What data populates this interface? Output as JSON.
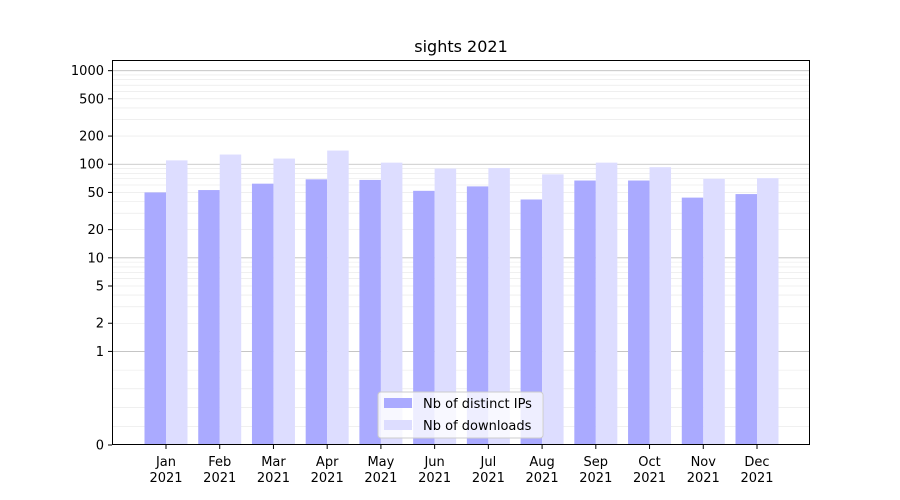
{
  "chart_data": {
    "type": "bar",
    "title": "sights 2021",
    "xlabel": "",
    "ylabel": "",
    "yscale": "symlog",
    "ylim": [
      0,
      1300
    ],
    "y_ticks": [
      0,
      1,
      2,
      5,
      10,
      20,
      50,
      100,
      200,
      500,
      1000
    ],
    "y_tick_labels": [
      "0",
      "1",
      "2",
      "5",
      "10",
      "20",
      "50",
      "100",
      "200",
      "500",
      "1000"
    ],
    "grid": true,
    "legend_position": "bottom-center",
    "categories": [
      {
        "month": "Jan",
        "year": "2021"
      },
      {
        "month": "Feb",
        "year": "2021"
      },
      {
        "month": "Mar",
        "year": "2021"
      },
      {
        "month": "Apr",
        "year": "2021"
      },
      {
        "month": "May",
        "year": "2021"
      },
      {
        "month": "Jun",
        "year": "2021"
      },
      {
        "month": "Jul",
        "year": "2021"
      },
      {
        "month": "Aug",
        "year": "2021"
      },
      {
        "month": "Sep",
        "year": "2021"
      },
      {
        "month": "Oct",
        "year": "2021"
      },
      {
        "month": "Nov",
        "year": "2021"
      },
      {
        "month": "Dec",
        "year": "2021"
      }
    ],
    "series": [
      {
        "name": "Nb of distinct IPs",
        "color": "#aaaaff",
        "values": [
          50,
          53,
          62,
          69,
          68,
          52,
          58,
          42,
          67,
          67,
          44,
          48
        ]
      },
      {
        "name": "Nb of downloads",
        "color": "#ddddff",
        "values": [
          110,
          127,
          115,
          140,
          104,
          90,
          91,
          78,
          104,
          93,
          70,
          71
        ]
      }
    ]
  }
}
